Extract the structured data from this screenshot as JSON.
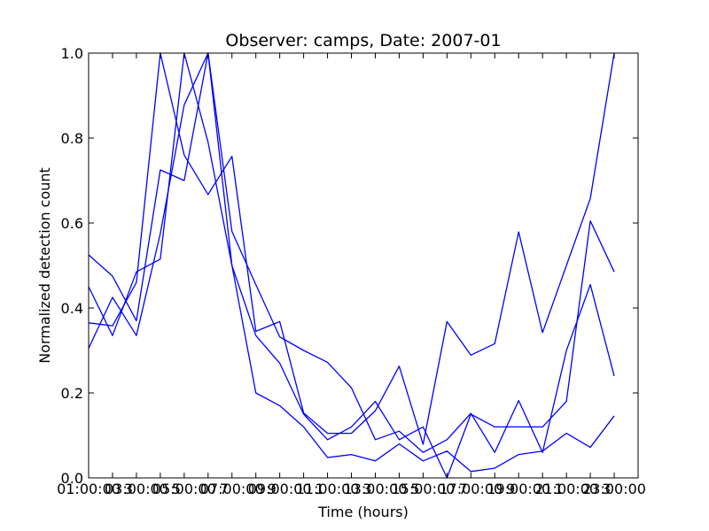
{
  "chart_data": {
    "type": "line",
    "title": "Observer: camps, Date: 2007-01",
    "xlabel": "Time (hours)",
    "ylabel": "Normalized detection count",
    "xlim": [
      1,
      24
    ],
    "ylim": [
      0,
      1
    ],
    "x": [
      1,
      2,
      3,
      4,
      5,
      6,
      7,
      8,
      9,
      10,
      11,
      12,
      13,
      14,
      15,
      16,
      17,
      18,
      19,
      20,
      21,
      22,
      23,
      24
    ],
    "x_ticks": [
      {
        "value": 1,
        "label": "01:00:00"
      },
      {
        "value": 3,
        "label": "03:00:00"
      },
      {
        "value": 5,
        "label": "05:00:00"
      },
      {
        "value": 7,
        "label": "07:00:00"
      },
      {
        "value": 9,
        "label": "09:00:00"
      },
      {
        "value": 11,
        "label": "11:00:00"
      },
      {
        "value": 13,
        "label": "13:00:00"
      },
      {
        "value": 15,
        "label": "15:00:00"
      },
      {
        "value": 17,
        "label": "17:00:00"
      },
      {
        "value": 19,
        "label": "19:00:00"
      },
      {
        "value": 21,
        "label": "21:00:00"
      },
      {
        "value": 23,
        "label": "23:00:00"
      }
    ],
    "x_tick_minor_labels": [
      {
        "value": 2,
        "label": "3"
      },
      {
        "value": 4,
        "label": "5"
      },
      {
        "value": 6,
        "label": "7"
      },
      {
        "value": 8,
        "label": "9"
      },
      {
        "value": 10,
        "label": "1"
      },
      {
        "value": 12,
        "label": "3"
      },
      {
        "value": 14,
        "label": "5"
      },
      {
        "value": 16,
        "label": "7"
      },
      {
        "value": 18,
        "label": "9"
      },
      {
        "value": 20,
        "label": "1"
      },
      {
        "value": 22,
        "label": "3"
      }
    ],
    "y_ticks": [
      {
        "value": 0.0,
        "label": "0.0"
      },
      {
        "value": 0.2,
        "label": "0.2"
      },
      {
        "value": 0.4,
        "label": "0.4"
      },
      {
        "value": 0.6,
        "label": "0.6"
      },
      {
        "value": 0.8,
        "label": "0.8"
      },
      {
        "value": 1.0,
        "label": "1.0"
      }
    ],
    "grid": false,
    "line_color": "#0000ff",
    "series": [
      {
        "values": [
          0.525,
          0.475,
          0.37,
          0.725,
          0.7,
          1.0,
          0.5,
          0.335,
          0.27,
          0.15,
          0.09,
          0.12,
          0.18,
          0.09,
          0.12,
          0.0,
          0.15,
          0.12,
          0.12,
          0.12,
          0.18,
          0.605,
          0.485,
          null
        ]
      },
      {
        "values": [
          0.45,
          0.335,
          0.485,
          0.515,
          1.0,
          0.79,
          0.5,
          0.2,
          0.17,
          0.12,
          0.048,
          0.055,
          0.04,
          0.08,
          0.04,
          0.063,
          0.015,
          0.023,
          0.055,
          0.063,
          0.105,
          0.072,
          0.146,
          null
        ]
      },
      {
        "values": [
          0.365,
          0.358,
          0.46,
          1.0,
          0.76,
          0.667,
          0.757,
          0.345,
          0.368,
          0.153,
          0.105,
          0.105,
          0.158,
          0.263,
          0.079,
          0.368,
          0.289,
          0.316,
          0.579,
          0.342,
          0.5,
          0.658,
          1.0,
          null
        ]
      },
      {
        "values": [
          0.305,
          0.425,
          0.335,
          0.575,
          0.878,
          1.0,
          0.58,
          0.455,
          0.332,
          0.3,
          0.272,
          0.212,
          0.09,
          0.11,
          0.06,
          0.09,
          0.152,
          0.06,
          0.182,
          0.06,
          0.3,
          0.455,
          0.24,
          null
        ]
      }
    ]
  }
}
